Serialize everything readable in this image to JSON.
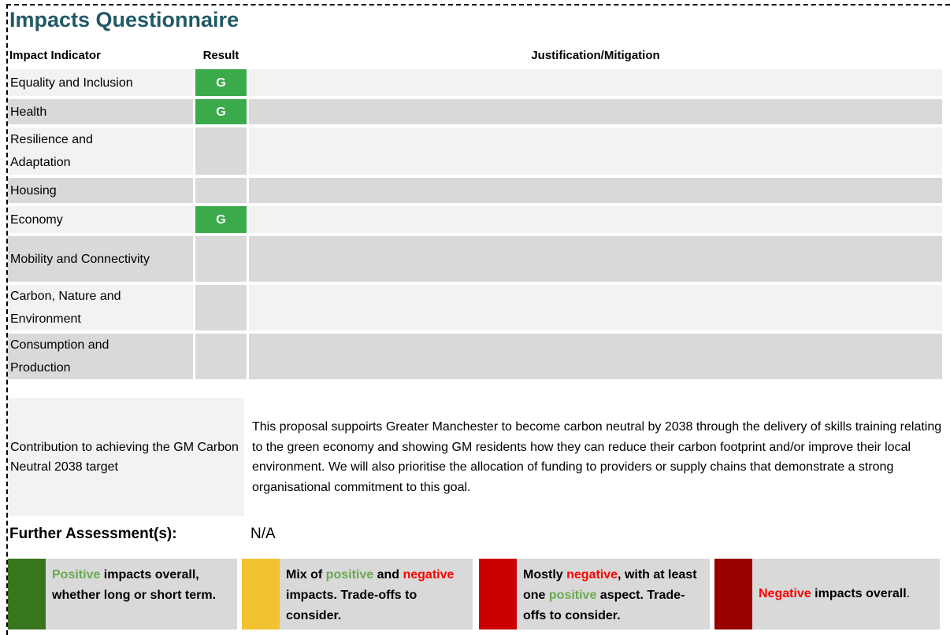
{
  "title": "Impacts Questionnaire",
  "table": {
    "headers": [
      "Impact Indicator",
      "Result",
      "Justification/Mitigation"
    ],
    "rows": [
      {
        "indicator": "Equality and Inclusion",
        "result": "G"
      },
      {
        "indicator": "Health",
        "result": "G"
      },
      {
        "indicator": "Resilience and Adaptation"
      },
      {
        "indicator": "Housing"
      },
      {
        "indicator": "Economy",
        "result": "G"
      },
      {
        "indicator": "Mobility and Connectivity"
      },
      {
        "indicator": "Carbon, Nature and Environment"
      },
      {
        "indicator": "Consumption and Production"
      }
    ]
  },
  "contribution": {
    "label": "Contribution to achieving the GM Carbon Neutral 2038 target",
    "text": "This proposal suppoirts Greater Manchester to become carbon neutral by 2038 through the delivery of skills training relating to the green economy and showing GM residents how they can reduce their carbon footprint and/or improve their local environment.  We will also prioritise the allocation of funding to providers or supply chains that demonstrate a strong organisational commitment to this goal."
  },
  "further_assessment": {
    "label": "Further Assessment(s):",
    "value": "N/A"
  },
  "legend": [
    {
      "color": "#38761d",
      "segments": [
        {
          "text": "Positive",
          "color": "#6aa84f"
        },
        {
          "text": " impacts overall, whether long or short term."
        }
      ]
    },
    {
      "color": "#f1c232",
      "segments": [
        {
          "text": "Mix of "
        },
        {
          "text": "positive",
          "color": "#6aa84f"
        },
        {
          "text": " and "
        },
        {
          "text": "negative",
          "color": "#ff0000"
        },
        {
          "text": " impacts. Trade-offs to consider."
        }
      ]
    },
    {
      "color": "#cc0000",
      "segments": [
        {
          "text": "Mostly "
        },
        {
          "text": "negative",
          "color": "#ff0000"
        },
        {
          "text": ", with at least one "
        },
        {
          "text": "positive",
          "color": "#6aa84f"
        },
        {
          "text": " aspect. Trade-offs to consider."
        }
      ]
    },
    {
      "color": "#990000",
      "segments": [
        {
          "text": "Negative",
          "color": "#ff0000"
        },
        {
          "text": " impacts overall"
        },
        {
          "text": ".",
          "weight": "normal"
        }
      ]
    }
  ]
}
